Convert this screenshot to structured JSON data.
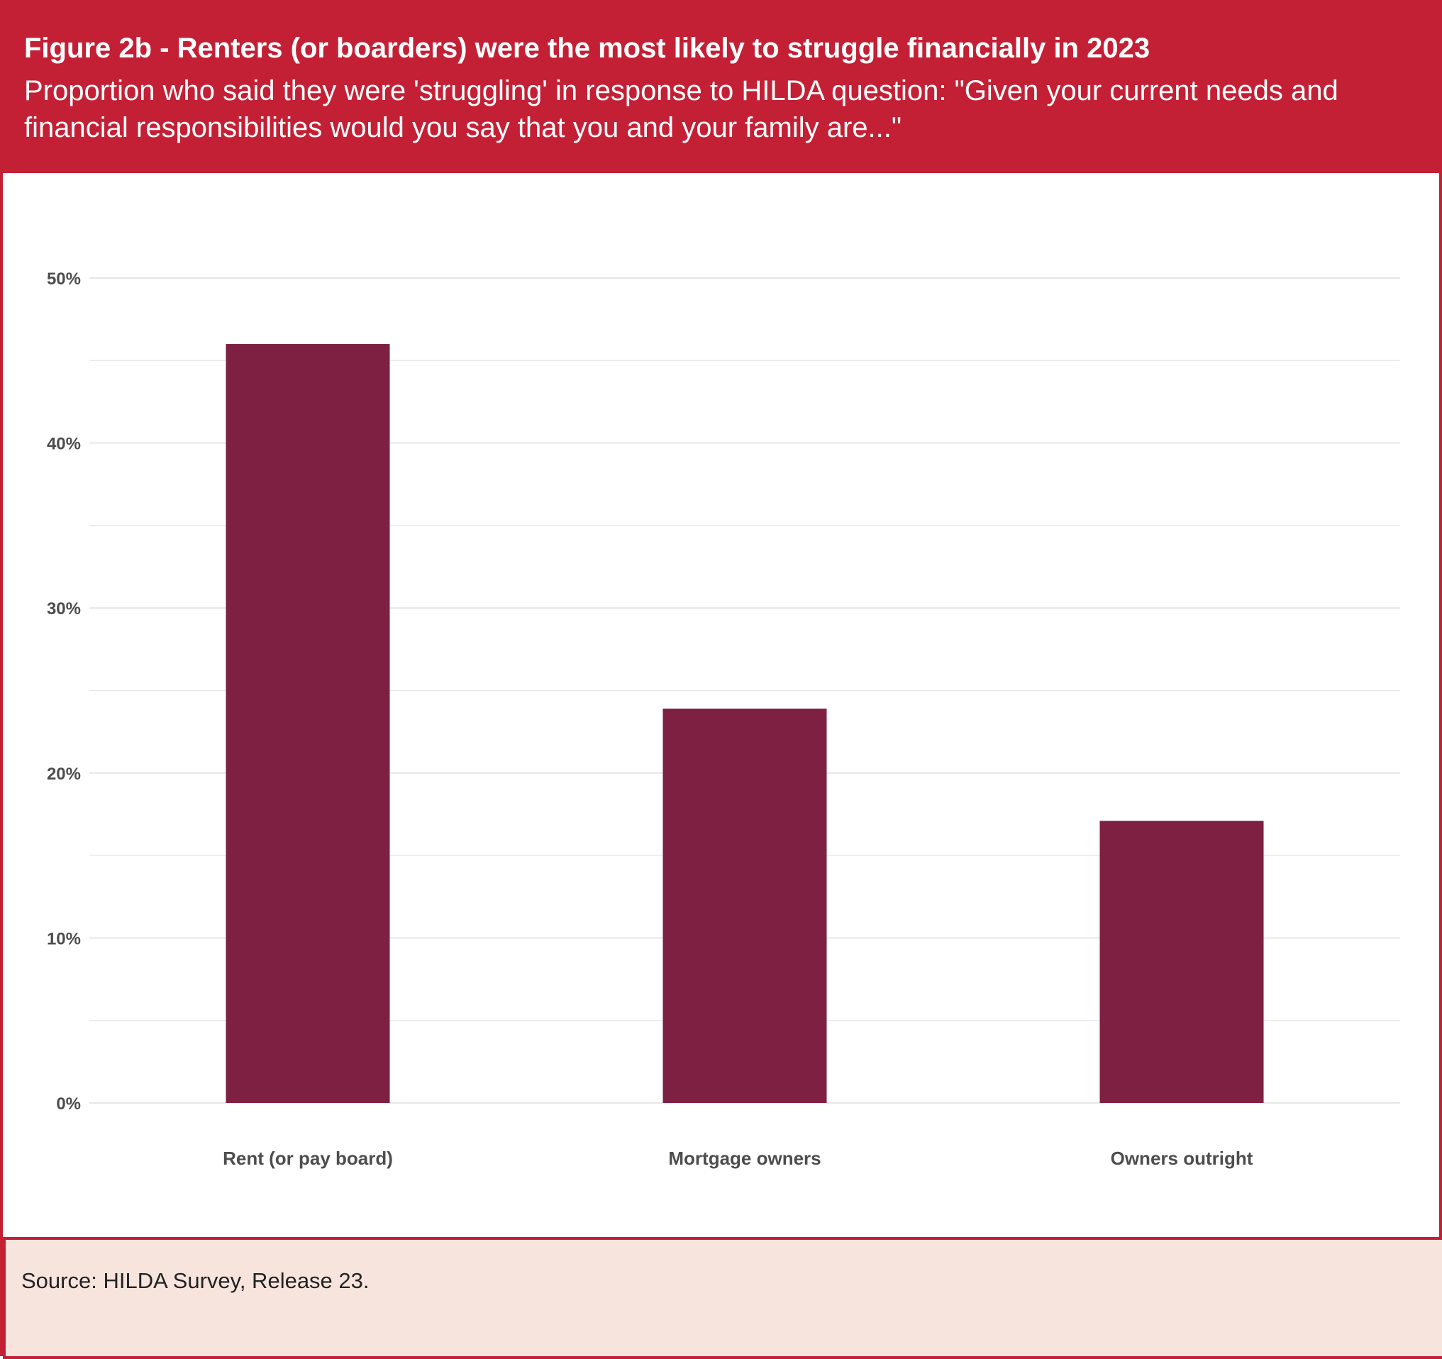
{
  "header": {
    "title": "Figure 2b - Renters (or boarders) were the most likely to struggle financially in 2023",
    "subtitle": "Proportion who said they were 'struggling' in response to HILDA question: \"Given your current needs and financial responsibilities would you say that you and your family are...\""
  },
  "footer": {
    "source": "Source: HILDA Survey, Release 23."
  },
  "colors": {
    "header_bg": "#c42035",
    "footer_bg": "#f7e4dd",
    "bar": "#7e2042",
    "grid": "#e6e6e9",
    "axis_text": "#4d4d4d"
  },
  "chart_data": {
    "type": "bar",
    "categories": [
      "Rent (or pay board)",
      "Mortgage owners",
      "Owners outright"
    ],
    "values": [
      46.0,
      23.9,
      17.1
    ],
    "ylim": [
      0,
      50
    ],
    "yticks": [
      0,
      10,
      20,
      30,
      40,
      50
    ],
    "ytick_labels": [
      "0%",
      "10%",
      "20%",
      "30%",
      "40%",
      "50%"
    ],
    "xlabel": "",
    "ylabel": "",
    "grid": true,
    "legend": "none"
  }
}
